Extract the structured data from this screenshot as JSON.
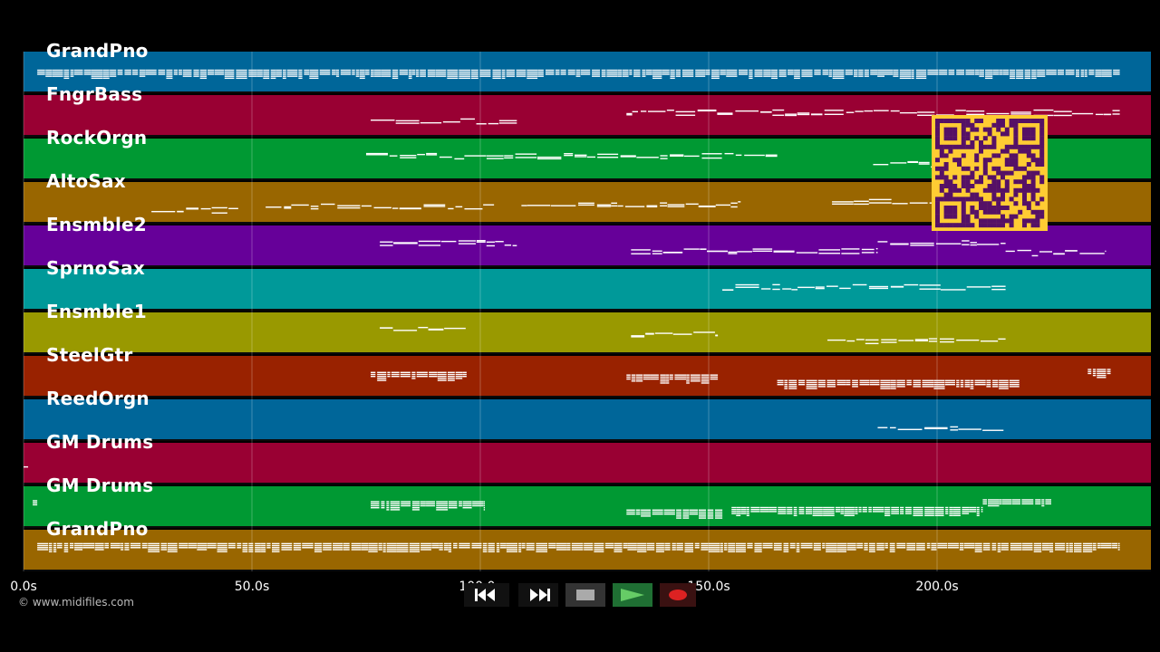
{
  "colors": {
    "blue": "#006699",
    "crimson": "#990033",
    "green": "#009933",
    "orange": "#996600",
    "purple": "#660099",
    "teal": "#009999",
    "olive": "#999900",
    "rust": "#992200",
    "note": "#ffffff",
    "qr_bg": "#ffcc33",
    "qr_fg": "#551166"
  },
  "timeline": {
    "start_seconds": 0,
    "end_seconds": 246,
    "gridlines_seconds": [
      0,
      50,
      100,
      150,
      200
    ],
    "tick_labels": [
      {
        "seconds": 0,
        "label": "0.0s"
      },
      {
        "seconds": 50,
        "label": "50.0s"
      },
      {
        "seconds": 100,
        "label": "100.0s"
      },
      {
        "seconds": 150,
        "label": "150.0s"
      },
      {
        "seconds": 200,
        "label": "200.0s"
      }
    ]
  },
  "tracks": [
    {
      "name": "GrandPno",
      "color": "blue",
      "note_spans": [
        [
          3,
          240
        ]
      ],
      "dense": true
    },
    {
      "name": "FngrBass",
      "color": "crimson",
      "note_spans": [
        [
          76,
          108
        ],
        [
          132,
          240
        ]
      ],
      "dense": false
    },
    {
      "name": "RockOrgn",
      "color": "green",
      "note_spans": [
        [
          75,
          165
        ],
        [
          186,
          202
        ]
      ],
      "dense": false
    },
    {
      "name": "AltoSax",
      "color": "orange",
      "note_spans": [
        [
          28,
          47
        ],
        [
          53,
          103
        ],
        [
          109,
          157
        ],
        [
          177,
          200
        ]
      ],
      "dense": false
    },
    {
      "name": "Ensmble2",
      "color": "purple",
      "note_spans": [
        [
          78,
          108
        ],
        [
          133,
          187
        ],
        [
          187,
          215
        ],
        [
          215,
          237
        ]
      ],
      "dense": false
    },
    {
      "name": "SprnoSax",
      "color": "teal",
      "note_spans": [
        [
          153,
          215
        ]
      ],
      "dense": false
    },
    {
      "name": "Ensmble1",
      "color": "olive",
      "note_spans": [
        [
          78,
          97
        ],
        [
          133,
          152
        ],
        [
          176,
          215
        ]
      ],
      "dense": false
    },
    {
      "name": "SteelGtr",
      "color": "rust",
      "note_spans": [
        [
          76,
          97
        ],
        [
          132,
          152
        ],
        [
          165,
          218
        ],
        [
          233,
          238
        ]
      ],
      "dense": true
    },
    {
      "name": "ReedOrgn",
      "color": "blue",
      "note_spans": [
        [
          187,
          215
        ]
      ],
      "dense": false
    },
    {
      "name": "GM Drums",
      "color": "crimson",
      "note_spans": [
        [
          0,
          1
        ]
      ],
      "dense": false
    },
    {
      "name": "GM Drums",
      "color": "green",
      "note_spans": [
        [
          2,
          3
        ],
        [
          76,
          101
        ],
        [
          132,
          153
        ],
        [
          155,
          210
        ],
        [
          210,
          225
        ]
      ],
      "dense": true
    },
    {
      "name": "GrandPno",
      "color": "orange",
      "note_spans": [
        [
          3,
          240
        ]
      ],
      "dense": true
    }
  ],
  "copyright": "© www.midifiles.com",
  "transport": {
    "buttons": [
      {
        "name": "rewind-button",
        "icon": "rewind-icon",
        "bg": "#111111"
      },
      {
        "name": "fast-forward-button",
        "icon": "fast-forward-icon",
        "bg": "#111111"
      },
      {
        "name": "stop-button",
        "icon": "stop-icon",
        "bg": "#333333"
      },
      {
        "name": "play-button",
        "icon": "play-icon",
        "bg": "#1f6f33"
      },
      {
        "name": "record-button",
        "icon": "record-icon",
        "bg": "#3a1111"
      }
    ]
  },
  "qr_code": {
    "icon": "qr-code-icon"
  }
}
